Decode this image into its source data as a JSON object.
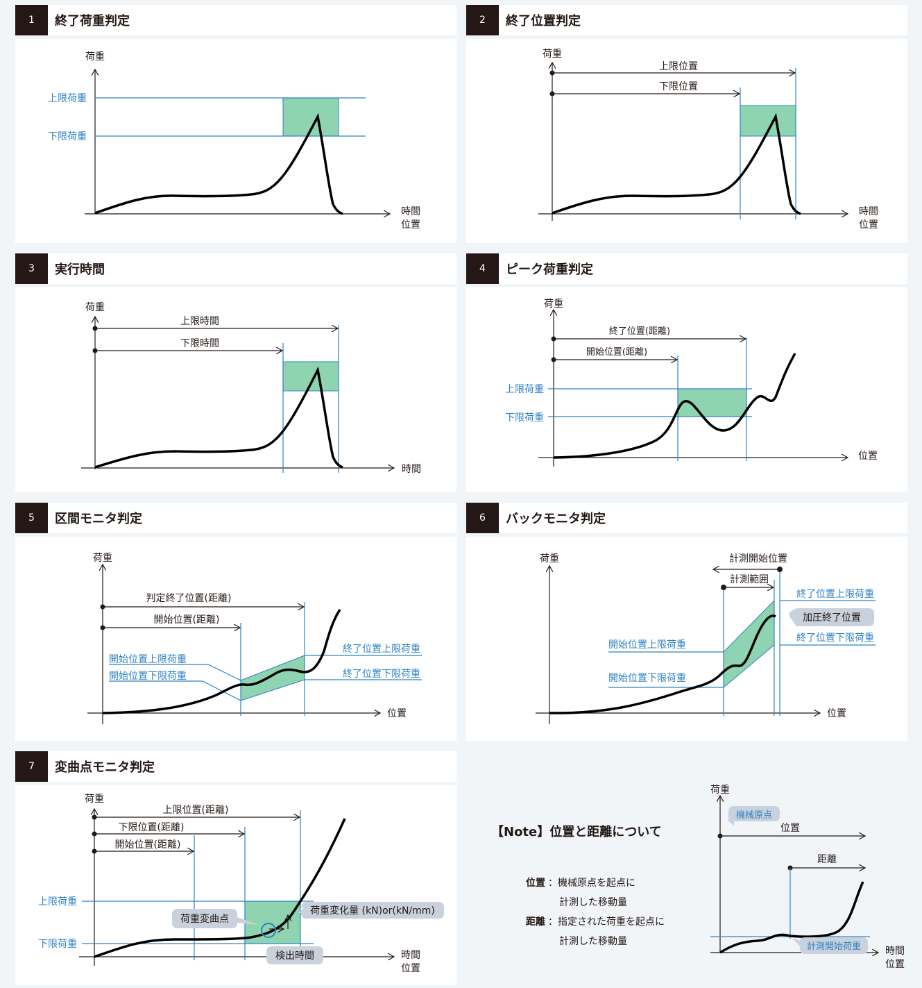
{
  "colors": {
    "blue": "#2f82c4",
    "fill": "#8fd4b1",
    "fillStroke": "#2f82c4",
    "dark": "#231815",
    "bubble": "#c9d2dc"
  },
  "p1": {
    "num": "1",
    "title": "終了荷重判定",
    "y": "荷重",
    "x1": "時間",
    "x2": "位置",
    "upper": "上限荷重",
    "lower": "下限荷重"
  },
  "p2": {
    "num": "2",
    "title": "終了位置判定",
    "y": "荷重",
    "x1": "時間",
    "x2": "位置",
    "upper": "上限位置",
    "lower": "下限位置"
  },
  "p3": {
    "num": "3",
    "title": "実行時間",
    "y": "荷重",
    "x1": "時間",
    "upper": "上限時間",
    "lower": "下限時間"
  },
  "p4": {
    "num": "4",
    "title": "ピーク荷重判定",
    "y": "荷重",
    "x": "位置",
    "end": "終了位置(距離)",
    "start": "開始位置(距離)",
    "upper": "上限荷重",
    "lower": "下限荷重"
  },
  "p5": {
    "num": "5",
    "title": "区間モニタ判定",
    "y": "荷重",
    "x": "位置",
    "end": "判定終了位置(距離)",
    "start": "開始位置(距離)",
    "su": "開始位置上限荷重",
    "sl": "開始位置下限荷重",
    "eu": "終了位置上限荷重",
    "el": "終了位置下限荷重"
  },
  "p6": {
    "num": "6",
    "title": "バックモニタ判定",
    "y": "荷重",
    "x": "位置",
    "ms": "計測開始位置",
    "mr": "計測範囲",
    "eu": "終了位置上限荷重",
    "pe": "加圧終了位置",
    "el": "終了位置下限荷重",
    "su": "開始位置上限荷重",
    "sl": "開始位置下限荷重"
  },
  "p7": {
    "num": "7",
    "title": "変曲点モニタ判定",
    "y": "荷重",
    "x1": "時間",
    "x2": "位置",
    "up": "上限位置(距離)",
    "lp": "下限位置(距離)",
    "sp": "開始位置(距離)",
    "upper": "上限荷重",
    "lower": "下限荷重",
    "ip": "荷重変曲点",
    "dv": "荷重変化量 (kN)or(kN/mm)",
    "dt": "検出時間"
  },
  "note": {
    "title": "【Note】位置と距離について",
    "k1": "位置",
    "t1a": "：機械原点を起点に",
    "t1b": "計測した移動量",
    "k2": "距離",
    "t2a": "：指定された荷重を起点に",
    "t2b": "計測した移動量",
    "y": "荷重",
    "x1": "時間",
    "x2": "位置",
    "origin": "機械原点",
    "pos": "位置",
    "dist": "距離",
    "mstart": "計測開始荷重"
  }
}
